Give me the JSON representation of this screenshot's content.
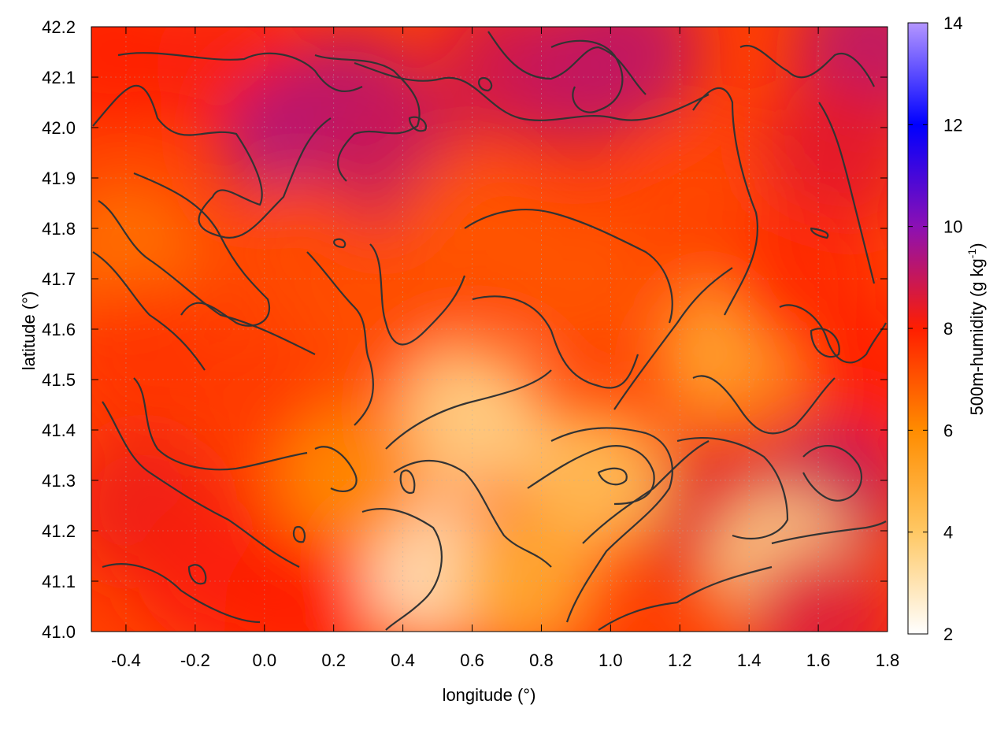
{
  "chart_data": {
    "type": "heatmap",
    "title": "",
    "xlabel": "longitude (°)",
    "ylabel": "latitude (°)",
    "colorbar_label_main": "500m-humidity (g kg",
    "colorbar_label_sup": "-1",
    "colorbar_label_close": ")",
    "xlim": [
      -0.5,
      1.8
    ],
    "ylim": [
      41.0,
      42.2
    ],
    "x_ticks": [
      {
        "value": -0.4,
        "label": "-0.4"
      },
      {
        "value": -0.2,
        "label": "-0.2"
      },
      {
        "value": 0.0,
        "label": "0.0"
      },
      {
        "value": 0.2,
        "label": "0.2"
      },
      {
        "value": 0.4,
        "label": "0.4"
      },
      {
        "value": 0.6,
        "label": "0.6"
      },
      {
        "value": 0.8,
        "label": "0.8"
      },
      {
        "value": 1.0,
        "label": "1.0"
      },
      {
        "value": 1.2,
        "label": "1.2"
      },
      {
        "value": 1.4,
        "label": "1.4"
      },
      {
        "value": 1.6,
        "label": "1.6"
      },
      {
        "value": 1.8,
        "label": "1.8"
      }
    ],
    "y_ticks": [
      {
        "value": 41.0,
        "label": "41.0"
      },
      {
        "value": 41.1,
        "label": "41.1"
      },
      {
        "value": 41.2,
        "label": "41.2"
      },
      {
        "value": 41.3,
        "label": "41.3"
      },
      {
        "value": 41.4,
        "label": "41.4"
      },
      {
        "value": 41.5,
        "label": "41.5"
      },
      {
        "value": 41.6,
        "label": "41.6"
      },
      {
        "value": 41.7,
        "label": "41.7"
      },
      {
        "value": 41.8,
        "label": "41.8"
      },
      {
        "value": 41.9,
        "label": "41.9"
      },
      {
        "value": 42.0,
        "label": "42.0"
      },
      {
        "value": 42.1,
        "label": "42.1"
      },
      {
        "value": 42.2,
        "label": "42.2"
      }
    ],
    "colorbar_range": [
      2,
      14
    ],
    "colorbar_ticks": [
      {
        "value": 2,
        "label": "2"
      },
      {
        "value": 4,
        "label": "4"
      },
      {
        "value": 6,
        "label": "6"
      },
      {
        "value": 8,
        "label": "8"
      },
      {
        "value": 10,
        "label": "10"
      },
      {
        "value": 12,
        "label": "12"
      },
      {
        "value": 14,
        "label": "14"
      }
    ],
    "colormap": [
      {
        "value": 2,
        "color": "#ffffff"
      },
      {
        "value": 4,
        "color": "#ffc864"
      },
      {
        "value": 6,
        "color": "#ff8c00"
      },
      {
        "value": 8,
        "color": "#ff1e00"
      },
      {
        "value": 10,
        "color": "#8c10b4"
      },
      {
        "value": 12,
        "color": "#0000ff"
      },
      {
        "value": 14,
        "color": "#b496ff"
      }
    ],
    "grid": true,
    "contour_color": "#333333",
    "humidity_field": [
      {
        "lon": -0.45,
        "lat": 42.15,
        "value": 8.0
      },
      {
        "lon": -0.1,
        "lat": 42.12,
        "value": 8.1
      },
      {
        "lon": 0.1,
        "lat": 41.97,
        "value": 9.4
      },
      {
        "lon": 0.25,
        "lat": 42.05,
        "value": 9.2
      },
      {
        "lon": 0.35,
        "lat": 41.95,
        "value": 9.0
      },
      {
        "lon": 0.7,
        "lat": 42.12,
        "value": 8.8
      },
      {
        "lon": 0.9,
        "lat": 42.1,
        "value": 9.0
      },
      {
        "lon": 1.05,
        "lat": 42.15,
        "value": 9.1
      },
      {
        "lon": 1.75,
        "lat": 42.15,
        "value": 9.2
      },
      {
        "lon": 1.65,
        "lat": 41.95,
        "value": 8.5
      },
      {
        "lon": 1.25,
        "lat": 41.85,
        "value": 7.3
      },
      {
        "lon": 0.6,
        "lat": 41.8,
        "value": 7.0
      },
      {
        "lon": 0.1,
        "lat": 41.75,
        "value": 7.2
      },
      {
        "lon": -0.4,
        "lat": 41.75,
        "value": 6.5
      },
      {
        "lon": -0.35,
        "lat": 41.55,
        "value": 7.6
      },
      {
        "lon": 0.0,
        "lat": 41.45,
        "value": 7.5
      },
      {
        "lon": 0.35,
        "lat": 41.6,
        "value": 7.1
      },
      {
        "lon": 0.9,
        "lat": 41.7,
        "value": 7.0
      },
      {
        "lon": 1.35,
        "lat": 41.55,
        "value": 5.0
      },
      {
        "lon": 1.55,
        "lat": 41.7,
        "value": 7.8
      },
      {
        "lon": 1.75,
        "lat": 41.5,
        "value": 8.0
      },
      {
        "lon": 1.45,
        "lat": 41.35,
        "value": 6.8
      },
      {
        "lon": 1.3,
        "lat": 41.23,
        "value": 8.6
      },
      {
        "lon": 1.65,
        "lat": 41.28,
        "value": 9.0
      },
      {
        "lon": 1.5,
        "lat": 41.13,
        "value": 3.5
      },
      {
        "lon": 1.6,
        "lat": 41.02,
        "value": 8.6
      },
      {
        "lon": 0.95,
        "lat": 41.3,
        "value": 4.2
      },
      {
        "lon": 0.6,
        "lat": 41.42,
        "value": 3.5
      },
      {
        "lon": 0.48,
        "lat": 41.12,
        "value": 2.8
      },
      {
        "lon": 0.75,
        "lat": 41.1,
        "value": 5.0
      },
      {
        "lon": 0.25,
        "lat": 41.3,
        "value": 6.0
      },
      {
        "lon": -0.35,
        "lat": 41.25,
        "value": 8.3
      },
      {
        "lon": -0.15,
        "lat": 41.12,
        "value": 8.1
      },
      {
        "lon": 0.1,
        "lat": 41.05,
        "value": 8.0
      }
    ]
  }
}
